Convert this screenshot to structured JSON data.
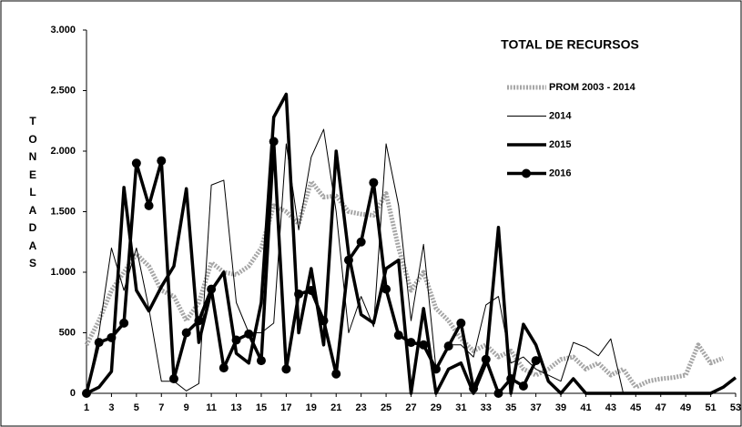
{
  "chart_data": {
    "type": "line",
    "title": "TOTAL DE RECURSOS",
    "ylabel": "TONELADAS",
    "x": [
      1,
      2,
      3,
      4,
      5,
      6,
      7,
      8,
      9,
      10,
      11,
      12,
      13,
      14,
      15,
      16,
      17,
      18,
      19,
      20,
      21,
      22,
      23,
      24,
      25,
      26,
      27,
      28,
      29,
      30,
      31,
      32,
      33,
      34,
      35,
      36,
      37,
      38,
      39,
      40,
      41,
      42,
      43,
      44,
      45,
      46,
      47,
      48,
      49,
      50,
      51,
      52,
      53
    ],
    "xlim": [
      1,
      53
    ],
    "xticks": [
      1,
      3,
      5,
      7,
      9,
      11,
      13,
      15,
      17,
      19,
      21,
      23,
      25,
      27,
      29,
      31,
      33,
      35,
      37,
      39,
      41,
      43,
      45,
      47,
      49,
      51,
      53
    ],
    "ylim": [
      0,
      3000
    ],
    "yticks": [
      0,
      500,
      {
        "value": 1000,
        "label": "1.000"
      },
      {
        "value": 1500,
        "label": "1.500"
      },
      {
        "value": 2000,
        "label": "2.000"
      },
      {
        "value": 2500,
        "label": "2.500"
      },
      {
        "value": 3000,
        "label": "3.000"
      }
    ],
    "grid": false,
    "series": [
      {
        "name": "PROM 2003 - 2014",
        "color": "#a6a6a6",
        "width": 5,
        "dashed": true,
        "marker": false,
        "values": [
          400,
          600,
          850,
          1000,
          1150,
          1050,
          850,
          800,
          600,
          750,
          1080,
          1000,
          980,
          1050,
          1200,
          1550,
          1500,
          1400,
          1750,
          1620,
          1630,
          1500,
          1480,
          1470,
          1650,
          1200,
          850,
          1000,
          700,
          600,
          450,
          350,
          400,
          300,
          350,
          200,
          150,
          200,
          280,
          300,
          200,
          250,
          150,
          200,
          50,
          100,
          120,
          130,
          150,
          400,
          250,
          290,
          null
        ]
      },
      {
        "name": "2014",
        "color": "#000000",
        "width": 1,
        "dashed": false,
        "marker": false,
        "values": [
          0,
          500,
          1200,
          850,
          1200,
          700,
          100,
          100,
          20,
          80,
          1720,
          1760,
          750,
          500,
          500,
          580,
          2060,
          1350,
          1950,
          2180,
          1500,
          500,
          800,
          550,
          2060,
          1550,
          600,
          1230,
          200,
          400,
          400,
          300,
          730,
          800,
          250,
          300,
          200,
          150,
          100,
          420,
          380,
          310,
          450,
          0,
          0,
          0,
          0,
          0,
          0,
          0,
          0,
          0,
          0
        ]
      },
      {
        "name": "2015",
        "color": "#000000",
        "width": 3.5,
        "dashed": false,
        "marker": false,
        "values": [
          0,
          50,
          180,
          1700,
          850,
          680,
          880,
          1050,
          1690,
          420,
          850,
          1000,
          330,
          250,
          750,
          2280,
          2470,
          500,
          1030,
          400,
          2000,
          1150,
          650,
          580,
          1030,
          1100,
          0,
          700,
          0,
          200,
          250,
          0,
          250,
          1370,
          0,
          570,
          400,
          100,
          0,
          120,
          0,
          0,
          0,
          0,
          0,
          0,
          0,
          0,
          0,
          0,
          0,
          50,
          130
        ]
      },
      {
        "name": "2016",
        "color": "#000000",
        "width": 3.5,
        "dashed": false,
        "marker": true,
        "values": [
          0,
          420,
          460,
          580,
          1900,
          1550,
          1920,
          120,
          500,
          600,
          860,
          210,
          440,
          490,
          270,
          2080,
          200,
          820,
          850,
          600,
          160,
          1100,
          1250,
          1740,
          860,
          480,
          420,
          400,
          200,
          390,
          580,
          40,
          280,
          0,
          120,
          60,
          270,
          null,
          null,
          null,
          null,
          null,
          null,
          null,
          null,
          null,
          null,
          null,
          null,
          null,
          null,
          null,
          null
        ]
      }
    ]
  }
}
